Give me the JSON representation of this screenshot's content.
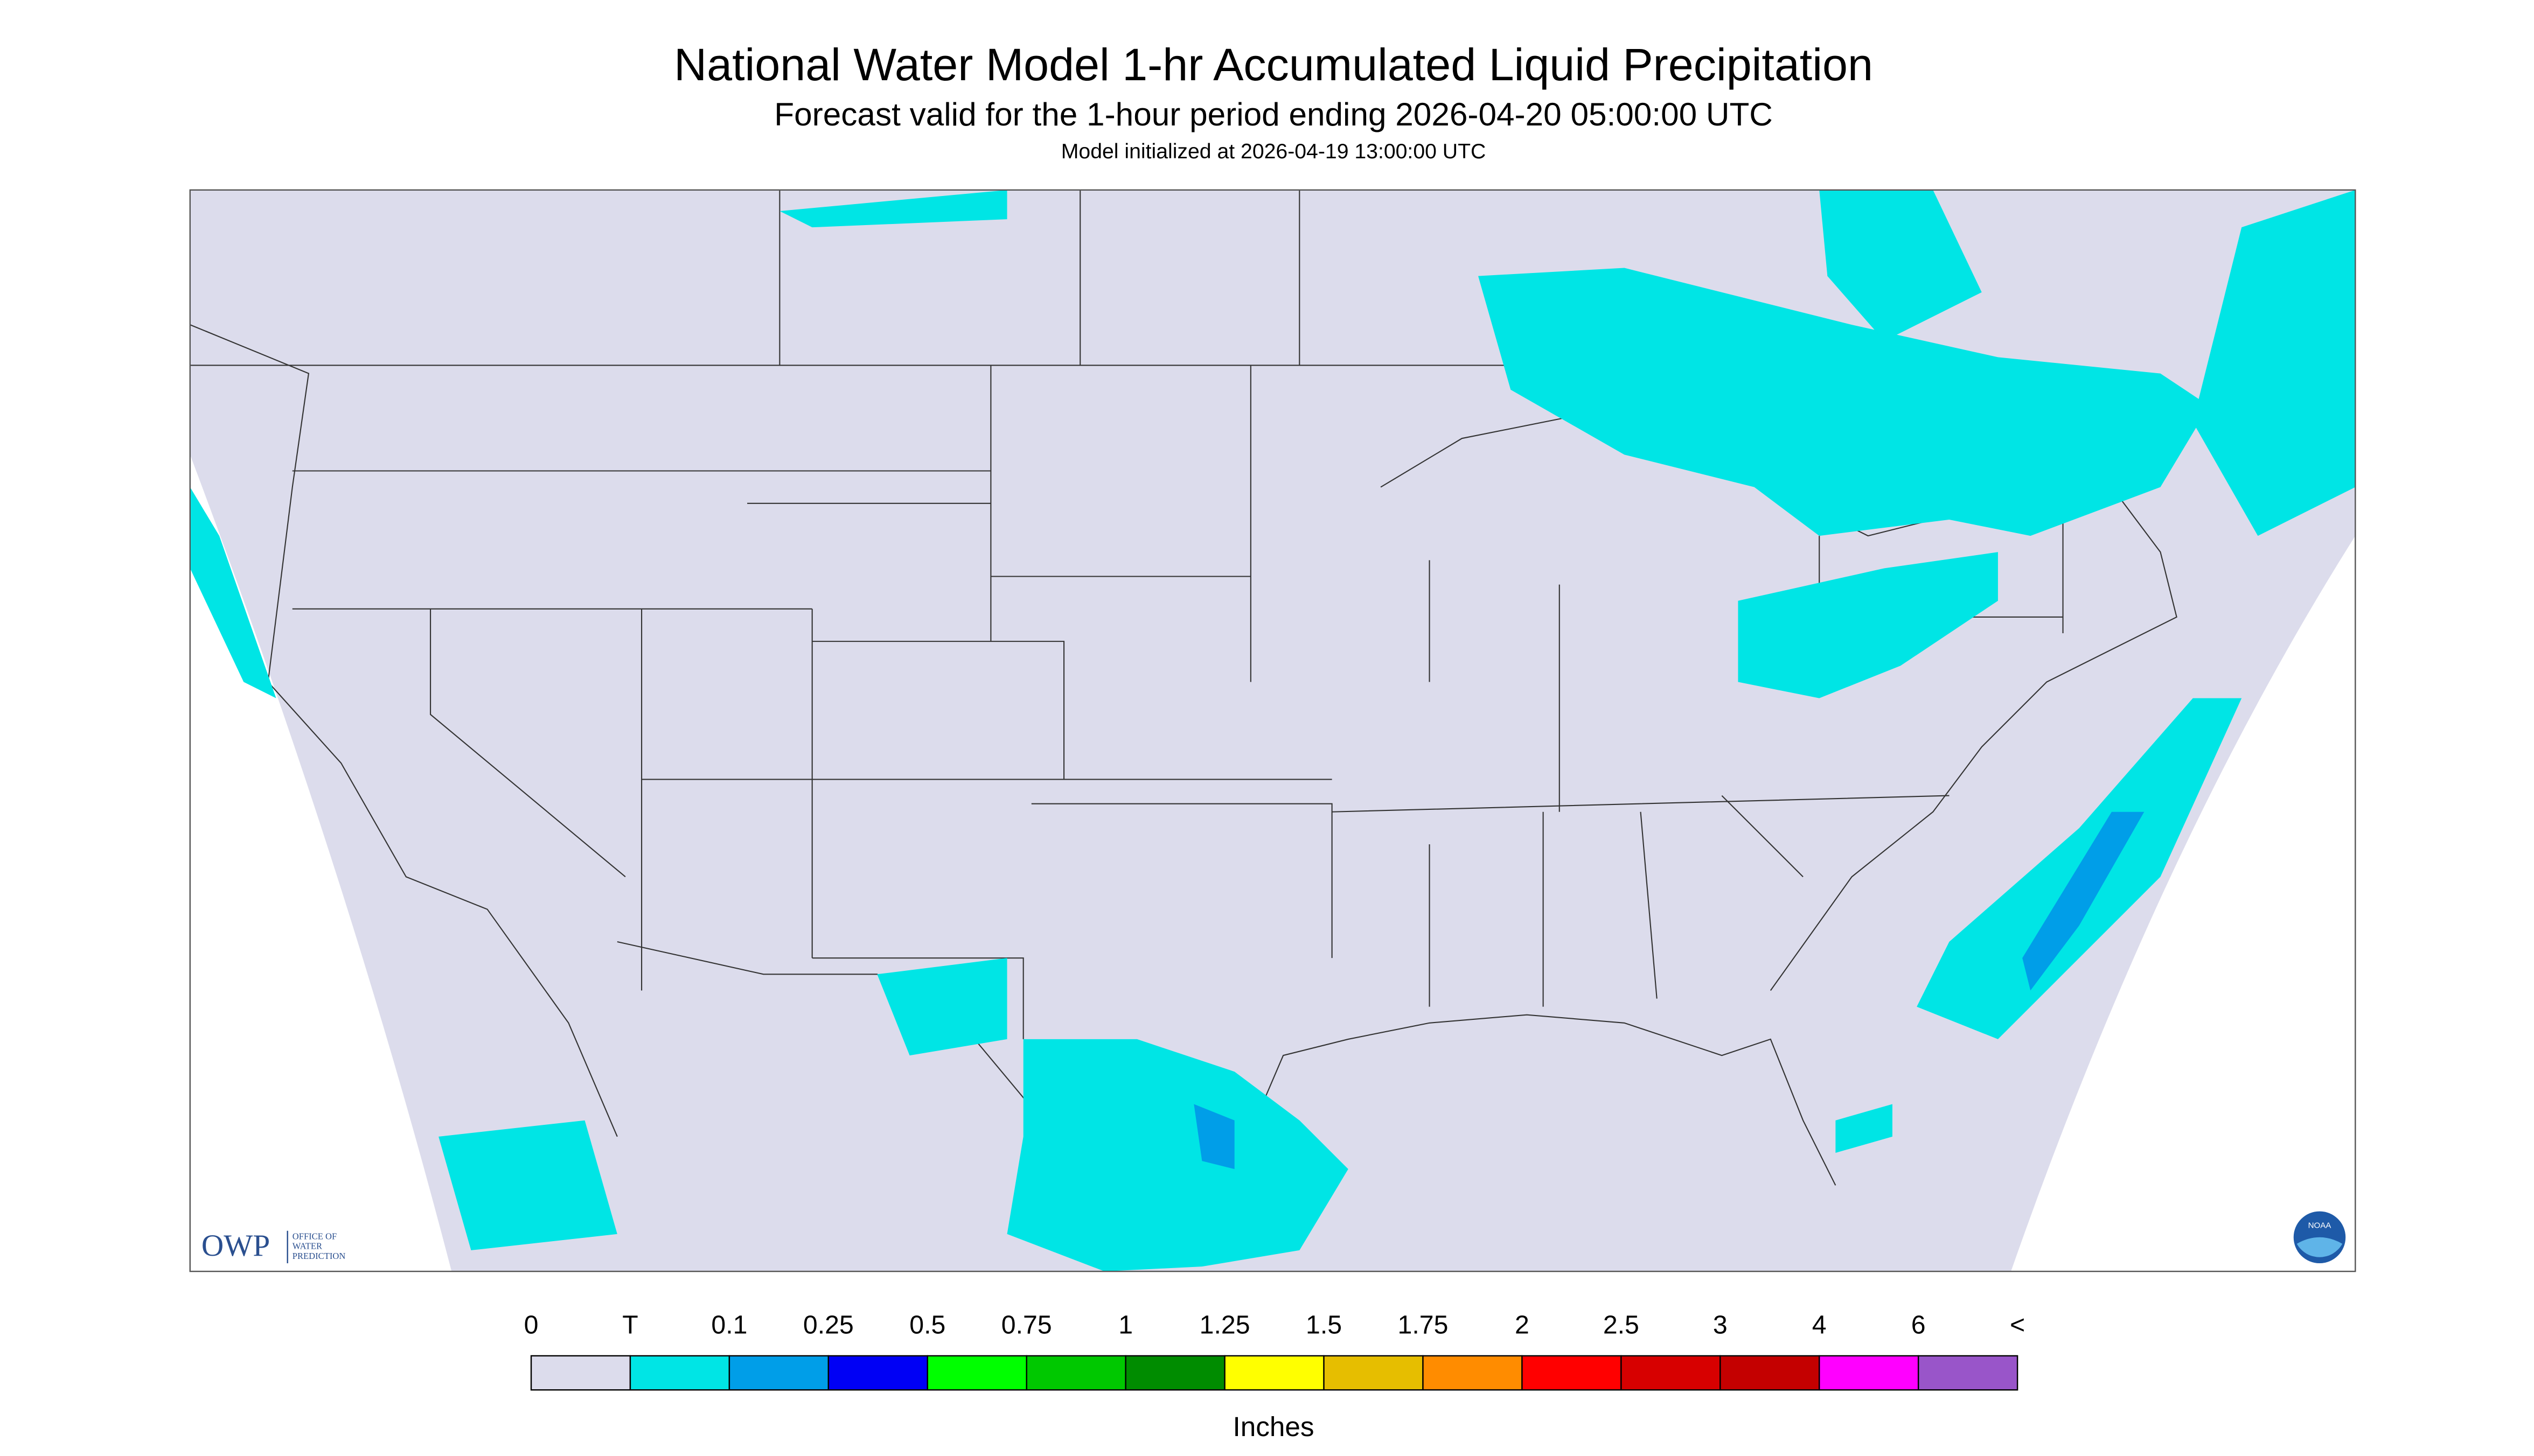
{
  "header": {
    "title": "National Water Model 1-hr Accumulated Liquid Precipitation",
    "subtitle": "Forecast valid for the 1-hour period ending 2026-04-20 05:00:00 UTC",
    "init": "Model initialized at 2026-04-19 13:00:00 UTC"
  },
  "legend": {
    "labels": [
      "0",
      "T",
      "0.1",
      "0.25",
      "0.5",
      "0.75",
      "1",
      "1.25",
      "1.5",
      "1.75",
      "2",
      "2.5",
      "3",
      "4",
      "6",
      "<"
    ],
    "colors": [
      "#dcdcec",
      "#00e5e5",
      "#009ee8",
      "#0000f5",
      "#00ff00",
      "#00c800",
      "#008c00",
      "#ffff00",
      "#e6be00",
      "#ff8c00",
      "#ff0000",
      "#d70000",
      "#c40000",
      "#ff00ff",
      "#9955c9"
    ],
    "unit": "Inches"
  },
  "logo": {
    "owp": "OWP",
    "office": [
      "OFFICE OF",
      "WATER",
      "PREDICTION"
    ],
    "noaa": "NOAA"
  }
}
